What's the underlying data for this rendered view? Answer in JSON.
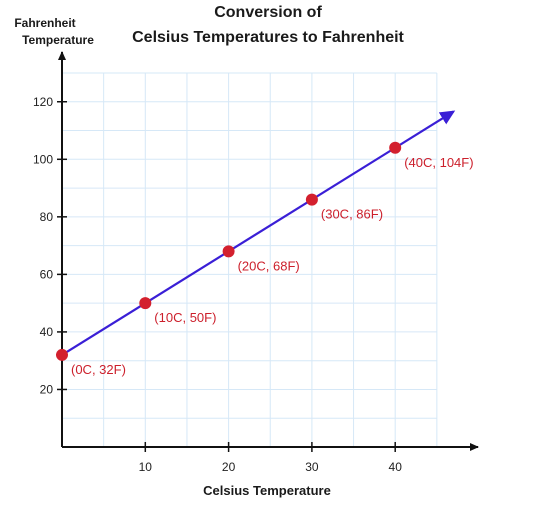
{
  "chart_data": {
    "type": "line",
    "title_line1": "Conversion of",
    "title_line2": "Celsius Temperatures to Fahrenheit",
    "ylabel_line1": "Fahrenheit",
    "ylabel_line2": "Temperature",
    "xlabel": "Celsius Temperature",
    "xlim": [
      0,
      45
    ],
    "ylim": [
      0,
      130
    ],
    "x_ticks": [
      10,
      20,
      30,
      40
    ],
    "y_ticks": [
      20,
      40,
      60,
      80,
      100,
      120
    ],
    "x_grid_step": 5,
    "y_grid_step": 10,
    "grid": true,
    "line": {
      "x_start": 0,
      "y_start": 32,
      "x_end": 47,
      "y_end": 116.6
    },
    "series": [
      {
        "x": [
          0,
          10,
          20,
          30,
          40
        ],
        "y": [
          32,
          50,
          68,
          86,
          104
        ],
        "labels": [
          "(0C, 32F)",
          "(10C, 50F)",
          "(20C, 68F)",
          "(30C, 86F)",
          "(40C, 104F)"
        ]
      }
    ],
    "colors": {
      "line": "#3a1fd6",
      "point": "#d3202e",
      "label": "#cc1f2b",
      "grid": "#d6e8f7",
      "axis": "#111111"
    }
  }
}
